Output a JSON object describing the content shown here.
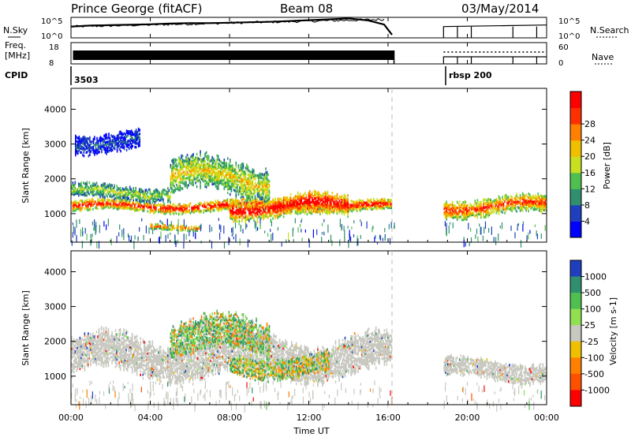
{
  "header": {
    "station": "Prince George (fitACF)",
    "beam": "Beam 08",
    "date": "03/May/2014"
  },
  "side_labels": {
    "nsky": "N.Sky",
    "freq_line1": "Freq.",
    "freq_line2": "[MHz]",
    "cpid": "CPID",
    "nsearch": "N.Search",
    "nave": "Nave"
  },
  "cpid_values": [
    "3503",
    "rbsp 200"
  ],
  "chart_data": [
    {
      "type": "line",
      "name": "N.Sky / N.Search",
      "left_ticks": [
        "10^5",
        "10^0"
      ],
      "right_ticks": [
        "10^5",
        "10^0"
      ],
      "nsky_x": [
        0,
        1,
        2,
        3,
        4,
        5,
        6,
        7,
        8,
        9,
        10,
        11,
        12,
        13,
        14,
        15,
        15.8,
        16.2
      ],
      "nsky_level": [
        0.55,
        0.6,
        0.62,
        0.64,
        0.66,
        0.7,
        0.72,
        0.72,
        0.74,
        0.76,
        0.78,
        0.82,
        0.86,
        0.9,
        0.95,
        0.85,
        0.65,
        0.15
      ],
      "nsearch_x": [
        18.8,
        24
      ],
      "nsearch_level": 0.55
    },
    {
      "type": "line",
      "name": "Freq / Nave",
      "left_ticks": [
        "18",
        "8"
      ],
      "right_ticks": [
        "60",
        "0"
      ],
      "freq_x_range": [
        0.1,
        16.3
      ],
      "nave_x_range": [
        18.8,
        24
      ],
      "nave_spikes_x": [
        19.5,
        20.2,
        22.3,
        23.5
      ]
    },
    {
      "type": "heatmap",
      "title": "Power",
      "ylabel": "Slant Range [km]",
      "ylim": [
        180,
        4600
      ],
      "yticks": [
        1000,
        2000,
        3000,
        4000
      ],
      "colorbar_label": "Power [dB]",
      "colorbar_ticks": [
        "4",
        "8",
        "12",
        "16",
        "20",
        "24",
        "28"
      ],
      "colorbar_colors": [
        "#0000ff",
        "#1f3fbf",
        "#2f8f6f",
        "#4fbf4f",
        "#c8e020",
        "#f0c000",
        "#ff8000",
        "#ff3000",
        "#ff0000"
      ],
      "bands": [
        {
          "x": [
            0,
            16.2
          ],
          "r": [
            1050,
            1350
          ],
          "level": 0.9
        },
        {
          "x": [
            0,
            5
          ],
          "r": [
            1400,
            1800
          ],
          "level": 0.45
        },
        {
          "x": [
            5,
            10
          ],
          "r": [
            1500,
            2500
          ],
          "level": 0.55
        },
        {
          "x": [
            8,
            14
          ],
          "r": [
            900,
            1500
          ],
          "level": 0.95
        },
        {
          "x": [
            0.2,
            3.5
          ],
          "r": [
            2800,
            3350
          ],
          "level": 0.15
        },
        {
          "x": [
            4,
            6.5
          ],
          "r": [
            520,
            680
          ],
          "level": 0.75
        },
        {
          "x": [
            18.8,
            24
          ],
          "r": [
            950,
            1450
          ],
          "level": 0.8
        }
      ]
    },
    {
      "type": "heatmap",
      "title": "Velocity",
      "ylabel": "Slant Range [km]",
      "ylim": [
        180,
        4600
      ],
      "yticks": [
        1000,
        2000,
        3000,
        4000
      ],
      "colorbar_label": "Velocity [m s-1]",
      "colorbar_ticks": [
        "1000",
        "500",
        "100",
        "25",
        "-25",
        "-100",
        "-500",
        "-1000"
      ],
      "colorbar_colors": [
        "#1f3fbf",
        "#2f8f6f",
        "#4fbf4f",
        "#90e050",
        "#c8c8c0",
        "#f0c000",
        "#ff8000",
        "#ff5000",
        "#ff0000"
      ],
      "bands": [
        {
          "x": [
            0,
            16.2
          ],
          "r": [
            1000,
            2100
          ],
          "kind": "gray"
        },
        {
          "x": [
            5,
            10
          ],
          "r": [
            1600,
            2600
          ],
          "kind": "green"
        },
        {
          "x": [
            8,
            13
          ],
          "r": [
            1000,
            1600
          ],
          "kind": "mixed"
        },
        {
          "x": [
            18.8,
            24
          ],
          "r": [
            900,
            1450
          ],
          "kind": "gray"
        }
      ]
    }
  ],
  "x_axis": {
    "label": "Time UT",
    "ticks": [
      "00:00",
      "04:00",
      "08:00",
      "12:00",
      "16:00",
      "20:00",
      "00:00"
    ]
  }
}
